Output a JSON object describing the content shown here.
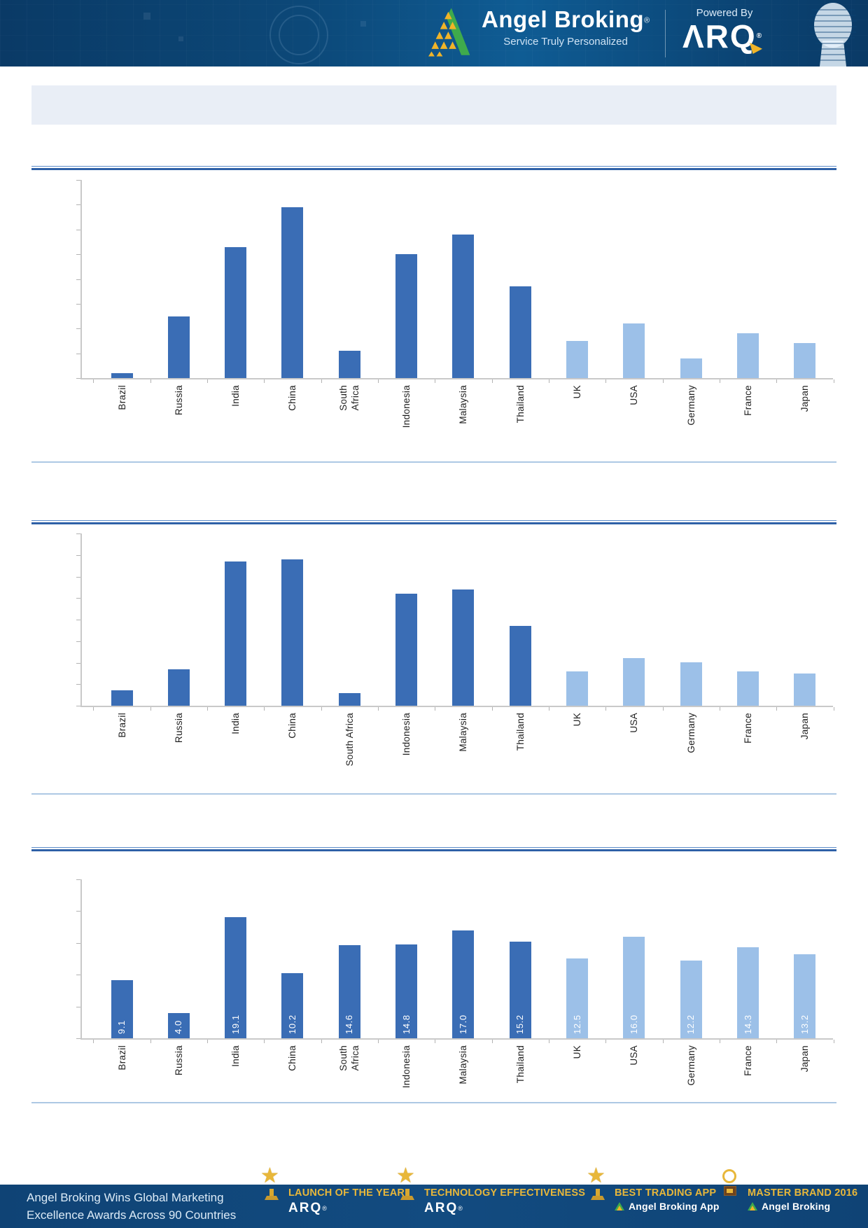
{
  "header": {
    "brand_name": "Angel Broking",
    "brand_registered": "®",
    "tagline": "Service Truly Personalized",
    "powered_by_label": "Powered By",
    "product_name": "ARQ",
    "product_registered": "®"
  },
  "title_bar": {
    "text": ""
  },
  "colors": {
    "header_background": "#0c4878",
    "bar_emerging": "#3a6db5",
    "bar_developed": "#9cc0e8",
    "section_rule_blue": "#2f61a7",
    "section_rule_thin": "#adc8e4",
    "title_bar_background": "#e9eef6",
    "footer_background": "#124b80",
    "award_gold": "#e8b73a",
    "logo_green": "#3faa4c",
    "logo_gold": "#f0b428"
  },
  "chart_data": [
    {
      "type": "bar",
      "title": "",
      "categories": [
        "Brazil",
        "Russia",
        "India",
        "China",
        "South\nAfrica",
        "Indonesia",
        "Malaysia",
        "Thailand",
        "UK",
        "USA",
        "Germany",
        "France",
        "Japan"
      ],
      "values": [
        0.2,
        2.5,
        5.3,
        6.9,
        1.1,
        5.0,
        5.8,
        3.7,
        1.5,
        2.2,
        0.8,
        1.8,
        1.4
      ],
      "ylim": [
        0,
        8
      ],
      "y_tick_count": 8,
      "y_tick_labels_shown": false,
      "data_labels_shown": false,
      "grid": false,
      "legend": false,
      "group_split_index": 8,
      "note": "y-axis has unlabeled tick marks; first 8 bars dark blue (emerging markets), last 5 light blue (developed markets)"
    },
    {
      "type": "bar",
      "title": "",
      "categories": [
        "Brazil",
        "Russia",
        "India",
        "China",
        "South Africa",
        "Indonesia",
        "Malaysia",
        "Thailand",
        "UK",
        "USA",
        "Germany",
        "France",
        "Japan"
      ],
      "values": [
        0.7,
        1.7,
        6.7,
        6.8,
        0.6,
        5.2,
        5.4,
        3.7,
        1.6,
        2.2,
        2.0,
        1.6,
        1.5
      ],
      "ylim": [
        0,
        8
      ],
      "y_tick_count": 8,
      "y_tick_labels_shown": false,
      "data_labels_shown": false,
      "grid": false,
      "legend": false,
      "group_split_index": 8,
      "note": "y-axis has unlabeled tick marks; first 8 bars dark blue, last 5 light blue"
    },
    {
      "type": "bar",
      "title": "",
      "categories": [
        "Brazil",
        "Russia",
        "India",
        "China",
        "South\nAfrica",
        "Indonesia",
        "Malaysia",
        "Thailand",
        "UK",
        "USA",
        "Germany",
        "France",
        "Japan"
      ],
      "values": [
        9.1,
        4.0,
        19.1,
        10.2,
        14.6,
        14.8,
        17.0,
        15.2,
        12.5,
        16.0,
        12.2,
        14.3,
        13.2
      ],
      "data_labels": [
        "9.1",
        "4.0",
        "19.1",
        "10.2",
        "14.6",
        "14.8",
        "17.0",
        "15.2",
        "12.5",
        "16.0",
        "12.2",
        "14.3",
        "13.2"
      ],
      "ylim": [
        0,
        25
      ],
      "y_tick_count": 5,
      "y_tick_labels_shown": false,
      "data_labels_shown": true,
      "grid": false,
      "legend": false,
      "group_split_index": 8,
      "note": "white vertical data labels inside bars near baseline; first 8 bars dark blue, last 5 light blue"
    }
  ],
  "footer": {
    "headline_line1": "Angel Broking Wins Global Marketing",
    "headline_line2": "Excellence Awards Across 90 Countries",
    "awards": [
      {
        "title": "LAUNCH OF THE YEAR",
        "subtitle": "ARQ",
        "subtitle_registered": "®",
        "icon": "star-trophy-icon",
        "subtitle_logo": false
      },
      {
        "title": "TECHNOLOGY EFFECTIVENESS",
        "subtitle": "ARQ",
        "subtitle_registered": "®",
        "icon": "star-trophy-icon",
        "subtitle_logo": false
      },
      {
        "title": "BEST TRADING APP",
        "subtitle": "Angel Broking App",
        "subtitle_registered": "",
        "icon": "star-trophy-icon",
        "subtitle_logo": true
      },
      {
        "title": "MASTER BRAND 2016",
        "subtitle": "Angel Broking",
        "subtitle_registered": "",
        "icon": "globe-trophy-icon",
        "subtitle_logo": true
      }
    ]
  }
}
